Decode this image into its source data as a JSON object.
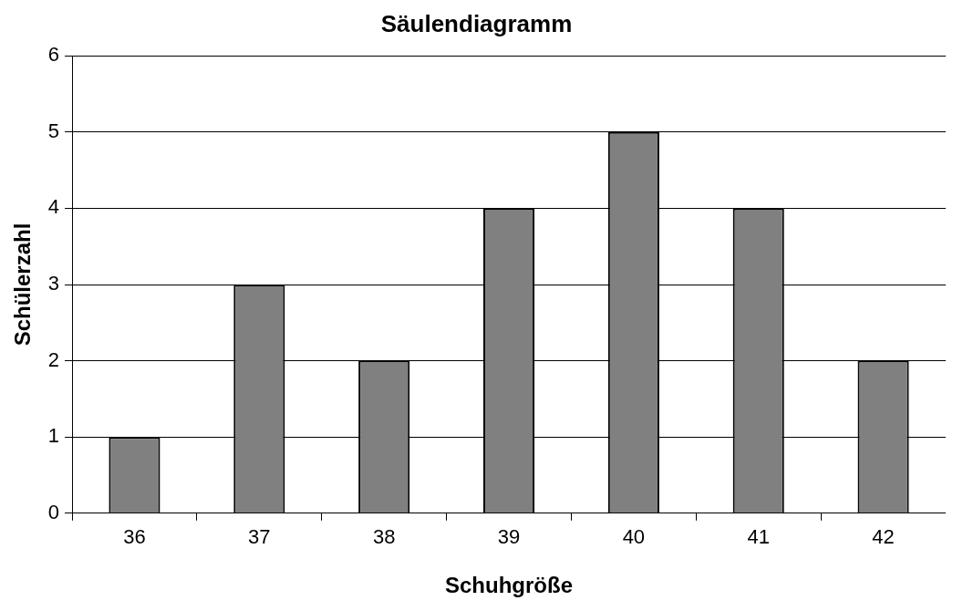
{
  "chart_data": {
    "type": "bar",
    "title": "Säulendiagramm",
    "xlabel": "Schuhgröße",
    "ylabel": "Schülerzahl",
    "categories": [
      "36",
      "37",
      "38",
      "39",
      "40",
      "41",
      "42"
    ],
    "values": [
      1,
      3,
      2,
      4,
      5,
      4,
      2
    ],
    "color": "#808080",
    "ylim": [
      0,
      6
    ],
    "yticks": [
      0,
      1,
      2,
      3,
      4,
      5,
      6
    ],
    "grid": "y",
    "legend": false
  }
}
